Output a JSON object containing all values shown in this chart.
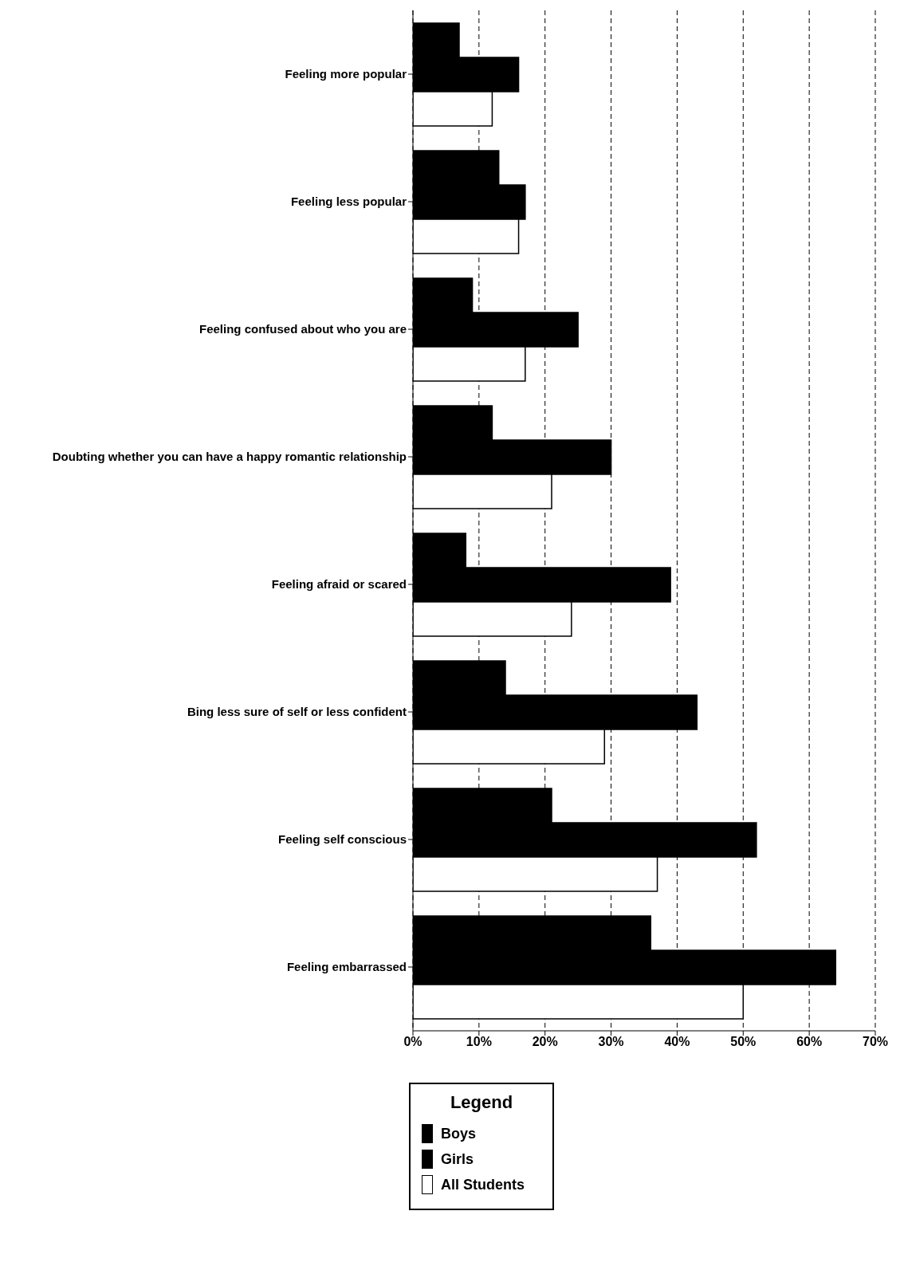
{
  "chart_data": {
    "type": "bar",
    "orientation": "horizontal",
    "categories": [
      "Feeling more popular",
      "Feeling less popular",
      "Feeling confused about who you are",
      "Doubting whether you can have a happy romantic relationship",
      "Feeling afraid or scared",
      "Bing less sure of self or less confident",
      "Feeling self conscious",
      "Feeling embarrassed"
    ],
    "series": [
      {
        "name": "Boys",
        "color": "#000000",
        "values": [
          7,
          13,
          9,
          12,
          8,
          14,
          21,
          36
        ]
      },
      {
        "name": "Girls",
        "color": "#000000",
        "values": [
          16,
          17,
          25,
          30,
          39,
          43,
          52,
          64
        ]
      },
      {
        "name": "All Students",
        "color": "#ffffff",
        "values": [
          12,
          16,
          17,
          21,
          24,
          29,
          37,
          50
        ]
      }
    ],
    "xlim": [
      0,
      70
    ],
    "xticks": [
      {
        "value": 0,
        "label": "0%"
      },
      {
        "value": 10,
        "label": "10%"
      },
      {
        "value": 20,
        "label": "20%"
      },
      {
        "value": 30,
        "label": "30%"
      },
      {
        "value": 40,
        "label": "40%"
      },
      {
        "value": 50,
        "label": "50%"
      },
      {
        "value": 60,
        "label": "60%"
      },
      {
        "value": 70,
        "label": "70%"
      }
    ],
    "grid": "x",
    "legend": "bottom",
    "legend_title": "Legend"
  }
}
